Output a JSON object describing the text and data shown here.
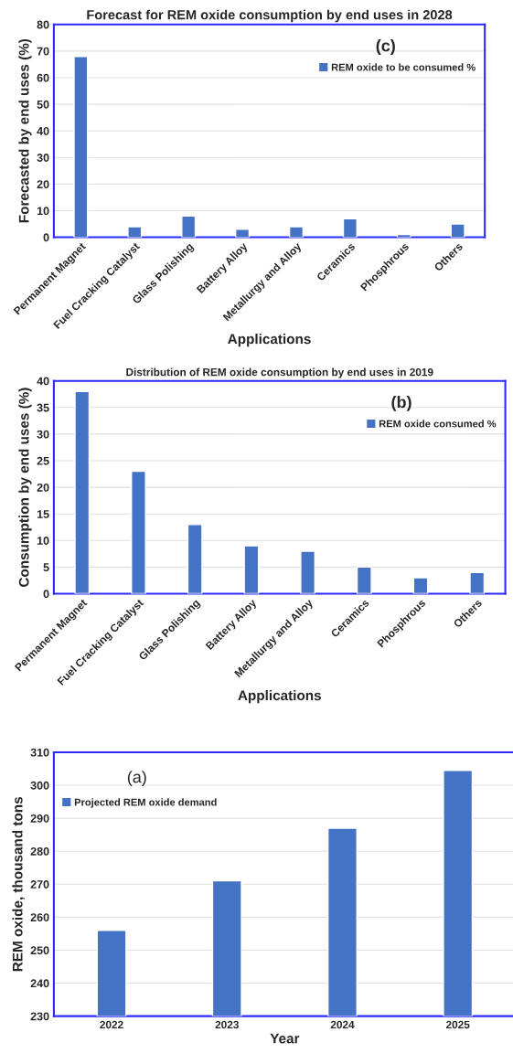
{
  "chart_data": [
    {
      "type": "bar",
      "title": "Forecast for REM oxide consumption by end uses in 2028",
      "xlabel": "Applications",
      "ylabel": "Forecasted by end uses (%)",
      "categories": [
        "Permanent Magnet",
        "Fuel Cracking Catalyst",
        "Glass Polishing",
        "Battery Alloy",
        "Metallurgy and Alloy",
        "Ceramics",
        "Phosphrous",
        "Others"
      ],
      "series": [
        {
          "name": "REM oxide to be consumed %",
          "color": "#4472c4",
          "values": [
            68,
            4,
            8,
            3,
            4,
            7,
            1,
            5
          ]
        }
      ],
      "ylim": [
        0,
        80
      ],
      "yticks": [
        0,
        10,
        20,
        30,
        40,
        50,
        60,
        70,
        80
      ],
      "grid": "y",
      "legend": "top right",
      "annotations": [
        "(c)"
      ]
    },
    {
      "type": "bar",
      "title": "Distribution of REM oxide consumption by end uses in 2019",
      "xlabel": "Applications",
      "ylabel": "Consumption by end uses (%)",
      "categories": [
        "Permanent Magnet",
        "Fuel Cracking Catalyst",
        "Glass Polishing",
        "Battery Alloy",
        "Metallurgy and Alloy",
        "Ceramics",
        "Phosphrous",
        "Others"
      ],
      "series": [
        {
          "name": "REM oxide consumed %",
          "color": "#4472c4",
          "values": [
            38,
            23,
            13,
            9,
            8,
            5,
            3,
            4
          ]
        }
      ],
      "ylim": [
        0,
        40
      ],
      "yticks": [
        0,
        5,
        10,
        15,
        20,
        25,
        30,
        35,
        40
      ],
      "grid": "y",
      "legend": "top right",
      "annotations": [
        "(b)"
      ]
    },
    {
      "type": "bar",
      "xlabel": "Year",
      "ylabel": "REM oxide, thousand tons",
      "categories": [
        "2022",
        "2023",
        "2024",
        "2025"
      ],
      "series": [
        {
          "name": "Projected REM oxide demand",
          "color": "#4472c4",
          "values": [
            256,
            271,
            287,
            304.5
          ]
        }
      ],
      "ylim": [
        230,
        310
      ],
      "yticks": [
        230,
        240,
        250,
        260,
        270,
        280,
        290,
        300,
        310
      ],
      "grid": "y",
      "legend": "top left",
      "annotations": [
        "(a)"
      ]
    }
  ]
}
